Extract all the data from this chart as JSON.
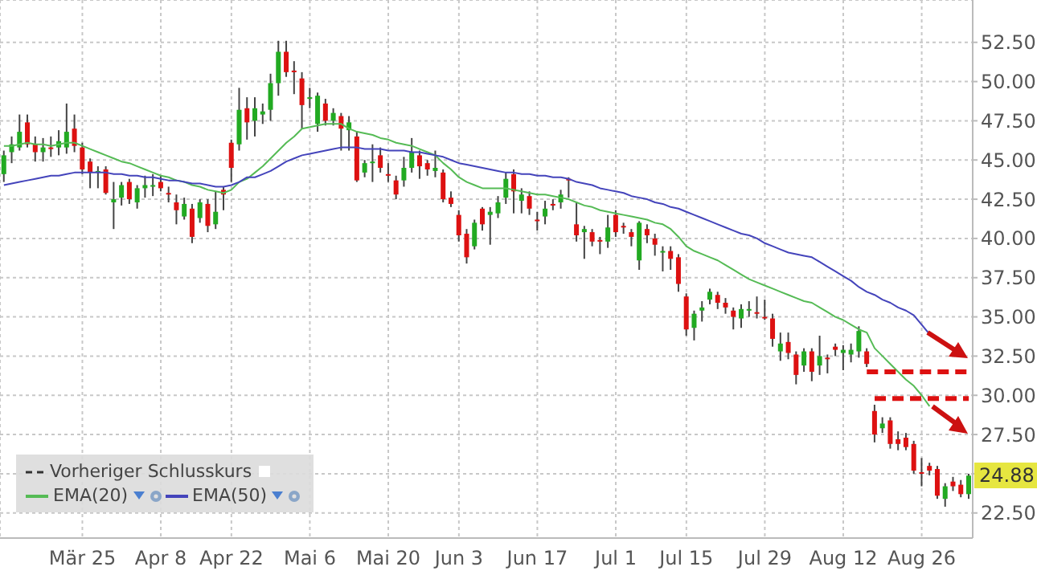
{
  "chart_data": {
    "type": "candlestick",
    "categories": [
      null,
      null,
      null,
      null,
      null,
      null,
      null,
      null,
      null,
      null,
      "Mär 25",
      null,
      null,
      null,
      null,
      null,
      null,
      null,
      null,
      null,
      "Apr 8",
      null,
      null,
      null,
      null,
      null,
      null,
      null,
      null,
      "Apr 22",
      null,
      null,
      null,
      null,
      null,
      null,
      null,
      null,
      null,
      "Mai 6",
      null,
      null,
      null,
      null,
      null,
      null,
      null,
      null,
      null,
      "Mai 20",
      null,
      null,
      null,
      null,
      null,
      null,
      null,
      null,
      "Jun 3",
      null,
      null,
      null,
      null,
      null,
      null,
      null,
      null,
      null,
      "Jun 17",
      null,
      null,
      null,
      null,
      null,
      null,
      null,
      null,
      null,
      "Jul 1",
      null,
      null,
      null,
      null,
      null,
      null,
      null,
      null,
      "Jul 15",
      null,
      null,
      null,
      null,
      null,
      null,
      null,
      null,
      null,
      "Jul 29",
      null,
      null,
      null,
      null,
      null,
      null,
      null,
      null,
      null,
      "Aug 12",
      null,
      null,
      null,
      null,
      null,
      null,
      null,
      null,
      null,
      "Aug 26",
      null,
      null,
      null,
      null,
      null,
      null
    ],
    "ohlc": [
      [
        44.1,
        45.6,
        43.6,
        45.3
      ],
      [
        45.5,
        46.5,
        44.8,
        46.0
      ],
      [
        45.8,
        47.9,
        45.6,
        46.8
      ],
      [
        47.4,
        47.9,
        45.8,
        46.0
      ],
      [
        46.0,
        46.5,
        44.9,
        45.5
      ],
      [
        45.5,
        46.4,
        44.9,
        45.8
      ],
      [
        45.8,
        46.5,
        45.2,
        45.7
      ],
      [
        45.8,
        46.9,
        45.3,
        46.2
      ],
      [
        45.8,
        48.6,
        45.4,
        46.8
      ],
      [
        47.0,
        47.9,
        45.5,
        45.9
      ],
      [
        45.8,
        46.1,
        44.1,
        44.4
      ],
      [
        44.9,
        45.1,
        43.2,
        44.2
      ],
      [
        44.2,
        44.6,
        43.2,
        44.3
      ],
      [
        44.4,
        44.6,
        42.8,
        42.9
      ],
      [
        42.3,
        43.6,
        40.6,
        42.5
      ],
      [
        42.6,
        43.6,
        42.1,
        43.4
      ],
      [
        43.6,
        43.8,
        42.2,
        42.5
      ],
      [
        42.3,
        43.4,
        41.9,
        43.2
      ],
      [
        43.2,
        44.0,
        42.6,
        43.4
      ],
      [
        43.3,
        44.1,
        42.7,
        43.4
      ],
      [
        43.6,
        44.0,
        43.0,
        43.2
      ],
      [
        42.9,
        43.3,
        42.3,
        42.8
      ],
      [
        42.3,
        42.8,
        40.9,
        41.8
      ],
      [
        41.4,
        42.6,
        41.2,
        42.2
      ],
      [
        41.9,
        42.2,
        39.7,
        40.1
      ],
      [
        41.3,
        42.5,
        41.0,
        42.3
      ],
      [
        42.2,
        42.5,
        40.4,
        40.8
      ],
      [
        40.9,
        43.0,
        40.6,
        41.7
      ],
      [
        43.1,
        43.3,
        41.8,
        42.8
      ],
      [
        46.1,
        46.3,
        43.6,
        44.5
      ],
      [
        46.0,
        49.6,
        45.6,
        48.2
      ],
      [
        48.3,
        49.0,
        46.3,
        47.4
      ],
      [
        47.5,
        49.0,
        46.5,
        48.3
      ],
      [
        47.9,
        48.6,
        47.3,
        48.1
      ],
      [
        48.2,
        50.5,
        47.5,
        49.9
      ],
      [
        49.9,
        52.6,
        49.1,
        51.9
      ],
      [
        51.9,
        52.6,
        50.3,
        50.6
      ],
      [
        50.7,
        51.3,
        49.2,
        50.6
      ],
      [
        50.2,
        50.6,
        47.0,
        48.5
      ],
      [
        49.0,
        49.6,
        48.3,
        49.0
      ],
      [
        47.3,
        49.3,
        46.8,
        49.1
      ],
      [
        48.6,
        48.9,
        47.2,
        47.5
      ],
      [
        47.5,
        48.3,
        47.2,
        48.0
      ],
      [
        47.8,
        48.0,
        45.6,
        47.0
      ],
      [
        46.9,
        47.8,
        45.6,
        47.4
      ],
      [
        46.5,
        46.8,
        43.6,
        43.7
      ],
      [
        44.2,
        45.0,
        43.9,
        44.8
      ],
      [
        44.8,
        46.0,
        43.6,
        44.9
      ],
      [
        45.3,
        45.8,
        44.2,
        44.5
      ],
      [
        44.1,
        44.8,
        43.6,
        44.0
      ],
      [
        43.7,
        44.0,
        42.5,
        42.8
      ],
      [
        43.7,
        45.2,
        43.3,
        44.5
      ],
      [
        44.5,
        46.4,
        44.2,
        45.5
      ],
      [
        45.3,
        45.6,
        43.8,
        44.6
      ],
      [
        44.8,
        45.0,
        44.0,
        44.4
      ],
      [
        44.3,
        45.6,
        43.9,
        44.5
      ],
      [
        44.2,
        44.4,
        42.3,
        42.5
      ],
      [
        42.6,
        43.0,
        42.0,
        42.2
      ],
      [
        41.5,
        41.8,
        39.8,
        40.2
      ],
      [
        40.3,
        40.6,
        38.4,
        38.8
      ],
      [
        39.5,
        41.2,
        39.3,
        41.0
      ],
      [
        41.9,
        42.0,
        40.5,
        40.9
      ],
      [
        41.5,
        42.0,
        39.6,
        41.7
      ],
      [
        41.6,
        42.7,
        41.3,
        42.3
      ],
      [
        42.6,
        44.2,
        42.2,
        43.8
      ],
      [
        44.1,
        44.4,
        41.6,
        43.0
      ],
      [
        42.4,
        43.2,
        41.6,
        42.8
      ],
      [
        42.7,
        43.0,
        41.5,
        41.9
      ],
      [
        41.2,
        41.7,
        40.5,
        41.1
      ],
      [
        41.4,
        42.4,
        40.9,
        41.9
      ],
      [
        42.2,
        42.5,
        41.8,
        42.1
      ],
      [
        42.3,
        43.1,
        41.9,
        42.8
      ],
      [
        43.8,
        43.9,
        42.6,
        43.7
      ],
      [
        40.9,
        42.3,
        39.8,
        40.2
      ],
      [
        40.4,
        40.8,
        38.7,
        40.6
      ],
      [
        40.4,
        40.6,
        39.5,
        39.8
      ],
      [
        39.9,
        40.1,
        39.0,
        39.8
      ],
      [
        39.8,
        41.5,
        39.4,
        40.7
      ],
      [
        41.5,
        41.8,
        40.1,
        40.4
      ],
      [
        40.8,
        41.0,
        40.3,
        40.7
      ],
      [
        40.4,
        40.6,
        39.5,
        40.1
      ],
      [
        38.6,
        41.1,
        38.0,
        41.0
      ],
      [
        40.6,
        40.9,
        39.7,
        40.2
      ],
      [
        40.0,
        40.3,
        38.9,
        39.6
      ],
      [
        39.1,
        39.5,
        37.9,
        39.2
      ],
      [
        39.2,
        39.5,
        38.0,
        38.7
      ],
      [
        38.8,
        39.0,
        36.6,
        37.1
      ],
      [
        36.3,
        36.5,
        33.8,
        34.2
      ],
      [
        34.3,
        35.4,
        33.5,
        35.2
      ],
      [
        35.4,
        36.0,
        34.7,
        35.6
      ],
      [
        36.1,
        36.8,
        35.8,
        36.6
      ],
      [
        36.4,
        36.6,
        35.5,
        35.9
      ],
      [
        35.9,
        36.2,
        35.2,
        35.6
      ],
      [
        35.4,
        35.6,
        34.2,
        35.0
      ],
      [
        34.9,
        35.8,
        34.3,
        35.5
      ],
      [
        35.4,
        36.0,
        35.0,
        35.5
      ],
      [
        35.3,
        36.3,
        34.9,
        35.2
      ],
      [
        35.0,
        36.1,
        34.8,
        34.9
      ],
      [
        34.9,
        35.2,
        33.1,
        33.6
      ],
      [
        32.8,
        34.0,
        32.2,
        33.3
      ],
      [
        33.4,
        34.0,
        32.3,
        32.7
      ],
      [
        32.6,
        32.8,
        30.7,
        31.3
      ],
      [
        31.9,
        33.0,
        31.5,
        32.8
      ],
      [
        32.8,
        33.0,
        30.9,
        31.5
      ],
      [
        31.9,
        33.8,
        31.3,
        32.5
      ],
      [
        32.4,
        32.6,
        31.4,
        32.3
      ],
      [
        33.1,
        33.3,
        32.5,
        32.9
      ],
      [
        32.7,
        33.2,
        31.6,
        32.9
      ],
      [
        32.6,
        33.3,
        32.1,
        32.9
      ],
      [
        32.8,
        34.4,
        32.4,
        34.1
      ],
      [
        32.8,
        33.0,
        31.8,
        32.0
      ],
      [
        29.0,
        29.4,
        27.0,
        27.5
      ],
      [
        27.9,
        28.6,
        27.6,
        28.2
      ],
      [
        28.4,
        28.6,
        26.6,
        26.9
      ],
      [
        27.2,
        27.7,
        26.5,
        26.9
      ],
      [
        27.3,
        27.6,
        26.5,
        26.7
      ],
      [
        26.9,
        27.1,
        25.0,
        25.2
      ],
      [
        25.1,
        26.0,
        24.2,
        25.0
      ],
      [
        25.5,
        25.7,
        24.9,
        25.2
      ],
      [
        25.3,
        25.5,
        23.4,
        23.6
      ],
      [
        23.4,
        24.4,
        22.9,
        24.2
      ],
      [
        24.5,
        24.8,
        23.9,
        24.2
      ],
      [
        24.3,
        24.6,
        23.5,
        23.7
      ],
      [
        23.7,
        25.0,
        23.4,
        24.88
      ]
    ],
    "colors": [
      "#22aa22",
      "#22aa22",
      "#22aa22",
      "#dd1111",
      "#dd1111",
      "#22aa22",
      "#dd1111",
      "#22aa22",
      "#22aa22",
      "#dd1111",
      "#dd1111",
      "#dd1111",
      "#22aa22",
      "#dd1111",
      "#22aa22",
      "#22aa22",
      "#dd1111",
      "#22aa22",
      "#22aa22",
      "#22aa22",
      "#dd1111",
      "#dd1111",
      "#dd1111",
      "#22aa22",
      "#dd1111",
      "#22aa22",
      "#dd1111",
      "#22aa22",
      "#dd1111",
      "#dd1111",
      "#22aa22",
      "#dd1111",
      "#22aa22",
      "#22aa22",
      "#22aa22",
      "#22aa22",
      "#dd1111",
      "#dd1111",
      "#dd1111",
      "#22aa22",
      "#22aa22",
      "#dd1111",
      "#22aa22",
      "#dd1111",
      "#22aa22",
      "#dd1111",
      "#22aa22",
      "#22aa22",
      "#dd1111",
      "#dd1111",
      "#dd1111",
      "#22aa22",
      "#22aa22",
      "#dd1111",
      "#dd1111",
      "#22aa22",
      "#dd1111",
      "#dd1111",
      "#dd1111",
      "#dd1111",
      "#22aa22",
      "#dd1111",
      "#22aa22",
      "#22aa22",
      "#22aa22",
      "#dd1111",
      "#22aa22",
      "#dd1111",
      "#dd1111",
      "#22aa22",
      "#dd1111",
      "#22aa22",
      "#dd1111",
      "#dd1111",
      "#22aa22",
      "#dd1111",
      "#dd1111",
      "#22aa22",
      "#dd1111",
      "#dd1111",
      "#dd1111",
      "#22aa22",
      "#dd1111",
      "#dd1111",
      "#22aa22",
      "#dd1111",
      "#dd1111",
      "#dd1111",
      "#22aa22",
      "#22aa22",
      "#22aa22",
      "#dd1111",
      "#dd1111",
      "#dd1111",
      "#22aa22",
      "#22aa22",
      "#dd1111",
      "#dd1111",
      "#dd1111",
      "#22aa22",
      "#dd1111",
      "#dd1111",
      "#22aa22",
      "#dd1111",
      "#22aa22",
      "#dd1111",
      "#dd1111",
      "#22aa22",
      "#22aa22",
      "#22aa22",
      "#dd1111",
      "#dd1111",
      "#22aa22",
      "#dd1111",
      "#dd1111",
      "#dd1111",
      "#dd1111",
      "#dd1111",
      "#dd1111",
      "#dd1111",
      "#22aa22",
      "#dd1111",
      "#dd1111",
      "#22aa22"
    ],
    "series": [
      {
        "name": "EMA(20)",
        "type": "line",
        "color": "#55bb55",
        "values": [
          45.9,
          45.9,
          46.0,
          46.1,
          46.0,
          46.0,
          45.9,
          46.0,
          46.1,
          46.1,
          45.9,
          45.7,
          45.5,
          45.3,
          45.1,
          44.9,
          44.8,
          44.6,
          44.4,
          44.2,
          44.0,
          43.9,
          43.7,
          43.6,
          43.4,
          43.3,
          43.1,
          43.0,
          42.9,
          43.1,
          43.6,
          43.8,
          44.2,
          44.6,
          45.1,
          45.6,
          46.1,
          46.5,
          47.0,
          47.1,
          47.2,
          47.3,
          47.3,
          47.3,
          47.0,
          46.8,
          46.7,
          46.6,
          46.4,
          46.3,
          46.1,
          46.0,
          45.9,
          45.7,
          45.5,
          45.3,
          44.8,
          44.4,
          43.9,
          43.6,
          43.4,
          43.2,
          43.2,
          43.2,
          43.2,
          43.1,
          43.0,
          42.9,
          42.8,
          42.8,
          42.7,
          42.6,
          42.5,
          42.3,
          42.1,
          42.0,
          41.8,
          41.7,
          41.6,
          41.5,
          41.4,
          41.3,
          41.2,
          41.0,
          40.9,
          40.6,
          40.1,
          39.5,
          39.2,
          39.0,
          38.8,
          38.6,
          38.3,
          38.0,
          37.7,
          37.4,
          37.2,
          37.0,
          36.8,
          36.6,
          36.4,
          36.2,
          36.0,
          35.9,
          35.6,
          35.3,
          35.0,
          34.8,
          34.5,
          34.2,
          34.0,
          33.0,
          32.5,
          32.0,
          31.5,
          31.0,
          30.6,
          30.0,
          29.3,
          null,
          null,
          null,
          null,
          null
        ]
      },
      {
        "name": "EMA(50)",
        "type": "line",
        "color": "#4444bb",
        "values": [
          43.4,
          43.5,
          43.6,
          43.7,
          43.8,
          43.9,
          44.0,
          44.0,
          44.1,
          44.2,
          44.2,
          44.2,
          44.2,
          44.2,
          44.1,
          44.1,
          44.0,
          44.0,
          43.9,
          43.9,
          43.8,
          43.7,
          43.7,
          43.6,
          43.5,
          43.5,
          43.4,
          43.3,
          43.3,
          43.4,
          43.6,
          43.9,
          43.9,
          44.1,
          44.3,
          44.6,
          44.9,
          45.1,
          45.3,
          45.4,
          45.5,
          45.6,
          45.7,
          45.8,
          45.8,
          45.8,
          45.7,
          45.7,
          45.7,
          45.6,
          45.6,
          45.6,
          45.5,
          45.5,
          45.4,
          45.3,
          45.2,
          45.0,
          44.8,
          44.7,
          44.6,
          44.5,
          44.4,
          44.3,
          44.2,
          44.2,
          44.1,
          44.1,
          44.0,
          44.0,
          43.9,
          43.9,
          43.8,
          43.6,
          43.5,
          43.4,
          43.2,
          43.1,
          43.0,
          42.9,
          42.7,
          42.6,
          42.5,
          42.3,
          42.2,
          42.0,
          41.9,
          41.7,
          41.5,
          41.3,
          41.1,
          40.9,
          40.7,
          40.5,
          40.3,
          40.2,
          40.0,
          39.7,
          39.5,
          39.3,
          39.1,
          39.0,
          38.9,
          38.8,
          38.5,
          38.2,
          37.9,
          37.6,
          37.3,
          36.9,
          36.6,
          36.4,
          36.1,
          35.9,
          35.6,
          35.4,
          35.1,
          34.5,
          33.9,
          null,
          null,
          null,
          null,
          null
        ]
      },
      {
        "type": "line",
        "color": "#dd1111",
        "line_style": "dashed",
        "values": [
          null,
          null,
          null,
          null,
          null,
          null,
          null,
          null,
          null,
          null,
          null,
          null,
          null,
          null,
          null,
          null,
          null,
          null,
          null,
          null,
          null,
          null,
          null,
          null,
          null,
          null,
          null,
          null,
          null,
          null,
          null,
          null,
          null,
          null,
          null,
          null,
          null,
          null,
          null,
          null,
          null,
          null,
          null,
          null,
          null,
          null,
          null,
          null,
          null,
          null,
          null,
          null,
          null,
          null,
          null,
          null,
          null,
          null,
          null,
          null,
          null,
          null,
          null,
          null,
          null,
          null,
          null,
          null,
          null,
          null,
          null,
          null,
          null,
          null,
          null,
          null,
          null,
          null,
          null,
          null,
          null,
          null,
          null,
          null,
          null,
          null,
          null,
          null,
          null,
          null,
          null,
          null,
          null,
          null,
          null,
          null,
          null,
          null,
          null,
          null,
          null,
          null,
          null,
          null,
          null,
          null,
          null,
          null,
          null,
          null,
          31.5,
          31.5,
          31.5,
          31.5,
          31.5,
          31.5,
          31.5,
          31.5,
          31.5,
          31.5,
          31.5,
          31.5,
          31.5,
          31.5
        ]
      },
      {
        "type": "line",
        "color": "#dd1111",
        "line_style": "dashed",
        "values": [
          null,
          null,
          null,
          null,
          null,
          null,
          null,
          null,
          null,
          null,
          null,
          null,
          null,
          null,
          null,
          null,
          null,
          null,
          null,
          null,
          null,
          null,
          null,
          null,
          null,
          null,
          null,
          null,
          null,
          null,
          null,
          null,
          null,
          null,
          null,
          null,
          null,
          null,
          null,
          null,
          null,
          null,
          null,
          null,
          null,
          null,
          null,
          null,
          null,
          null,
          null,
          null,
          null,
          null,
          null,
          null,
          null,
          null,
          null,
          null,
          null,
          null,
          null,
          null,
          null,
          null,
          null,
          null,
          null,
          null,
          null,
          null,
          null,
          null,
          null,
          null,
          null,
          null,
          null,
          null,
          null,
          null,
          null,
          null,
          null,
          null,
          null,
          null,
          null,
          null,
          null,
          null,
          null,
          null,
          null,
          null,
          null,
          null,
          null,
          null,
          null,
          null,
          null,
          null,
          null,
          null,
          null,
          null,
          null,
          null,
          null,
          29.8,
          29.8,
          29.8,
          29.8,
          29.8,
          29.8,
          29.8,
          29.8,
          29.8,
          29.8,
          29.8,
          29.8,
          29.8
        ]
      }
    ],
    "ylim": [
      20.9,
      55.2
    ],
    "yticks": [
      {
        "value": 22.5,
        "label": "22.50"
      },
      {
        "value": 25,
        "label": null
      },
      {
        "value": 27.5,
        "label": "27.50"
      },
      {
        "value": 30,
        "label": "30.00"
      },
      {
        "value": 32.5,
        "label": "32.50"
      },
      {
        "value": 35,
        "label": "35.00"
      },
      {
        "value": 37.5,
        "label": "37.50"
      },
      {
        "value": 40,
        "label": "40.00"
      },
      {
        "value": 42.5,
        "label": "42.50"
      },
      {
        "value": 45,
        "label": "45.00"
      },
      {
        "value": 47.5,
        "label": "47.50"
      },
      {
        "value": 50,
        "label": "50.00"
      },
      {
        "value": 52.5,
        "label": "52.50"
      }
    ],
    "grid": true,
    "legend": "bottom left",
    "annotations": [
      "Vorheriger Schlusskurs",
      {
        "text": "24.88",
        "y": 24.88
      }
    ]
  }
}
